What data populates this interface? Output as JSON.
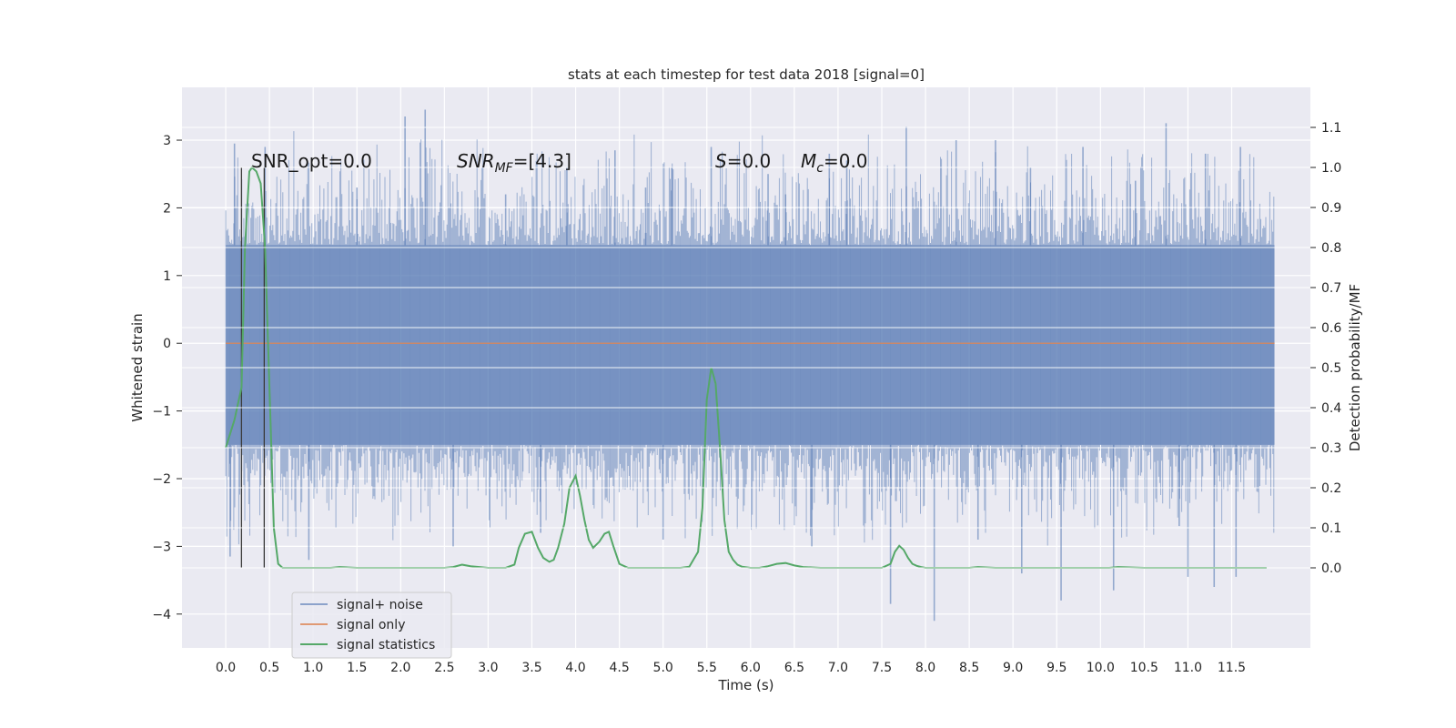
{
  "chart_data": {
    "type": "line",
    "title": "stats at each timestep for test data 2018 [signal=0]",
    "xlabel": "Time (s)",
    "ylabel_left": "Whitened strain",
    "ylabel_right": "Detection probability/MF",
    "xlim": [
      -0.5,
      12.4
    ],
    "ylim_left": [
      -4.5,
      3.78
    ],
    "ylim_right": [
      -0.2,
      1.2
    ],
    "x_ticks": [
      "0.0",
      "0.5",
      "1.0",
      "1.5",
      "2.0",
      "2.5",
      "3.0",
      "3.5",
      "4.0",
      "4.5",
      "5.0",
      "5.5",
      "6.0",
      "6.5",
      "7.0",
      "7.5",
      "8.0",
      "8.5",
      "9.0",
      "9.5",
      "10.0",
      "10.5",
      "11.0",
      "11.5"
    ],
    "y_ticks_left": [
      "3",
      "2",
      "1",
      "0",
      "−1",
      "−2",
      "−3",
      "−4"
    ],
    "y_ticks_right": [
      "1.1",
      "1.0",
      "0.9",
      "0.8",
      "0.7",
      "0.6",
      "0.5",
      "0.4",
      "0.3",
      "0.2",
      "0.1",
      "0.0"
    ],
    "grid": true,
    "legend_position": "bottom-left",
    "annotations": {
      "snr_opt": "SNR_opt=0.0",
      "snr_mf_base": "SNR",
      "snr_mf_sub": "MF",
      "snr_mf_value": "=[4.3]",
      "s_sym": "S",
      "s_value": "=0.0",
      "mc_sym": "M",
      "mc_sub": "c",
      "mc_value": "=0.0"
    },
    "vertical_markers_x": [
      0.18,
      0.44
    ],
    "series": [
      {
        "name": "signal+ noise",
        "color": "#4c72b0",
        "axis": "left",
        "x_range": [
          0.0,
          11.99
        ],
        "envelope_dense": [
          -1.5,
          1.45
        ],
        "typical_extremes": [
          -3.2,
          3.4
        ],
        "spikes": [
          [
            0.1,
            2.95
          ],
          [
            0.45,
            2.9
          ],
          [
            0.05,
            -3.15
          ],
          [
            0.95,
            -3.2
          ],
          [
            2.05,
            3.35
          ],
          [
            2.28,
            3.45
          ],
          [
            2.6,
            -3.0
          ],
          [
            3.9,
            2.6
          ],
          [
            4.45,
            2.85
          ],
          [
            4.8,
            2.3
          ],
          [
            5.1,
            2.6
          ],
          [
            5.55,
            2.9
          ],
          [
            6.2,
            2.5
          ],
          [
            6.4,
            2.2
          ],
          [
            7.1,
            2.7
          ],
          [
            7.6,
            -3.85
          ],
          [
            7.78,
            3.2
          ],
          [
            8.1,
            -4.1
          ],
          [
            8.35,
            3.0
          ],
          [
            8.8,
            3.0
          ],
          [
            9.1,
            -3.4
          ],
          [
            9.55,
            -3.8
          ],
          [
            9.8,
            2.9
          ],
          [
            10.15,
            -3.65
          ],
          [
            10.75,
            3.25
          ],
          [
            11.0,
            -3.45
          ],
          [
            11.3,
            -3.6
          ],
          [
            11.55,
            -3.45
          ],
          [
            11.2,
            2.8
          ],
          [
            11.6,
            2.9
          ],
          [
            1.5,
            2.3
          ],
          [
            3.2,
            2.2
          ],
          [
            6.9,
            2.8
          ],
          [
            9.2,
            2.6
          ],
          [
            10.4,
            2.4
          ],
          [
            3.6,
            -2.8
          ],
          [
            5.0,
            -2.9
          ],
          [
            6.7,
            -3.0
          ],
          [
            8.6,
            -2.9
          ],
          [
            10.9,
            -2.7
          ]
        ]
      },
      {
        "name": "signal only",
        "color": "#dd8452",
        "axis": "left",
        "x": [
          0.0,
          11.99
        ],
        "y": [
          0.0,
          0.0
        ]
      },
      {
        "name": "signal statistics",
        "color": "#55a868",
        "axis": "right",
        "x": [
          0.0,
          0.1,
          0.18,
          0.22,
          0.27,
          0.3,
          0.35,
          0.4,
          0.45,
          0.5,
          0.55,
          0.6,
          0.65,
          0.7,
          1.0,
          1.2,
          1.3,
          1.5,
          2.0,
          2.5,
          2.6,
          2.7,
          2.8,
          3.0,
          3.2,
          3.3,
          3.35,
          3.42,
          3.5,
          3.57,
          3.63,
          3.7,
          3.75,
          3.8,
          3.87,
          3.93,
          4.0,
          4.05,
          4.1,
          4.15,
          4.2,
          4.27,
          4.33,
          4.38,
          4.43,
          4.5,
          4.6,
          4.8,
          5.0,
          5.2,
          5.3,
          5.4,
          5.45,
          5.5,
          5.55,
          5.6,
          5.65,
          5.7,
          5.75,
          5.8,
          5.85,
          5.9,
          6.0,
          6.1,
          6.2,
          6.3,
          6.4,
          6.5,
          6.6,
          6.8,
          7.0,
          7.5,
          7.6,
          7.65,
          7.7,
          7.75,
          7.8,
          7.85,
          7.9,
          7.95,
          8.0,
          8.1,
          8.3,
          8.5,
          8.6,
          8.8,
          9.0,
          10.0,
          10.1,
          10.2,
          10.5,
          11.0,
          11.5,
          11.9
        ],
        "y": [
          0.3,
          0.37,
          0.45,
          0.8,
          0.99,
          1.0,
          0.99,
          0.96,
          0.8,
          0.45,
          0.1,
          0.01,
          0.0,
          0.0,
          0.0,
          0.0,
          0.002,
          0.0,
          0.0,
          0.0,
          0.002,
          0.008,
          0.004,
          0.0,
          0.0,
          0.008,
          0.05,
          0.085,
          0.09,
          0.05,
          0.025,
          0.015,
          0.02,
          0.05,
          0.11,
          0.2,
          0.23,
          0.18,
          0.12,
          0.07,
          0.05,
          0.065,
          0.085,
          0.09,
          0.055,
          0.01,
          0.0,
          0.0,
          0.0,
          0.0,
          0.003,
          0.04,
          0.15,
          0.42,
          0.5,
          0.46,
          0.3,
          0.12,
          0.04,
          0.02,
          0.008,
          0.003,
          0.0,
          0.0,
          0.004,
          0.01,
          0.012,
          0.006,
          0.002,
          0.0,
          0.0,
          0.0,
          0.01,
          0.04,
          0.055,
          0.045,
          0.025,
          0.01,
          0.005,
          0.002,
          0.0,
          0.0,
          0.0,
          0.0,
          0.002,
          0.0,
          0.0,
          0.0,
          0.0,
          0.002,
          0.0,
          0.0,
          0.0,
          0.0
        ]
      }
    ]
  }
}
